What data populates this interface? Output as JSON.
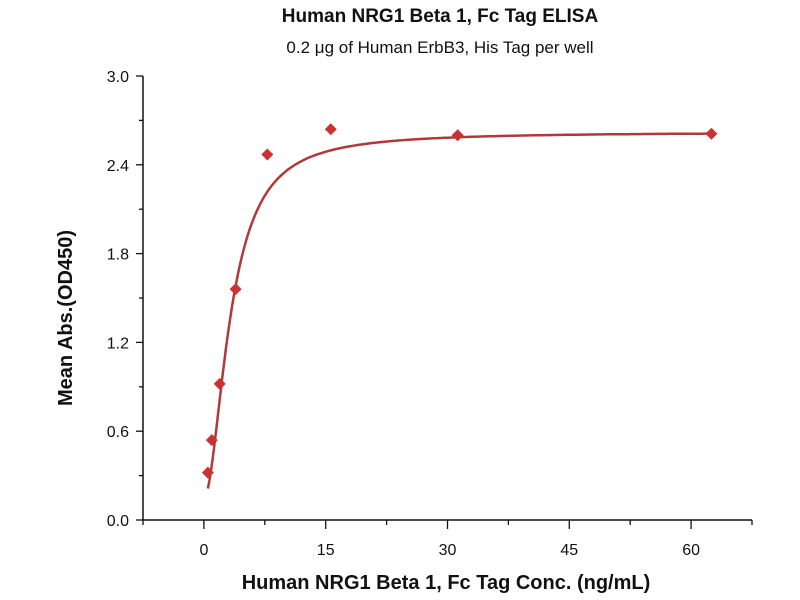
{
  "chart_data": {
    "type": "scatter",
    "title": "Human NRG1 Beta 1, Fc Tag ELISA",
    "subtitle": "0.2 μg of Human ErbB3, His Tag per well",
    "xlabel": "Human NRG1 Beta 1, Fc Tag Conc. (ng/mL)",
    "ylabel": "Mean Abs.(OD450)",
    "xlim": [
      -7.5,
      67.5
    ],
    "ylim": [
      0,
      3.0
    ],
    "xticks": [
      0,
      15,
      30,
      45,
      60
    ],
    "xtick_labels": [
      "0",
      "15",
      "30",
      "45",
      "60"
    ],
    "yticks": [
      0,
      0.6,
      1.2,
      1.8,
      2.4,
      3.0
    ],
    "ytick_labels": [
      "0.0",
      "0.6",
      "1.2",
      "1.8",
      "2.4",
      "3.0"
    ],
    "grid": false,
    "series": [
      {
        "name": "Mean Abs.",
        "marker": "diamond",
        "color": "#c83232",
        "x": [
          0.488,
          0.977,
          1.953,
          3.906,
          7.813,
          15.625,
          31.25,
          62.5
        ],
        "y": [
          0.32,
          0.54,
          0.92,
          1.56,
          2.47,
          2.64,
          2.6,
          2.61
        ]
      }
    ],
    "fit": {
      "type": "4PL",
      "bottom": 0.15,
      "top": 2.62,
      "ec50": 3.3,
      "hill": 1.9,
      "color": "#b03a3a"
    }
  }
}
